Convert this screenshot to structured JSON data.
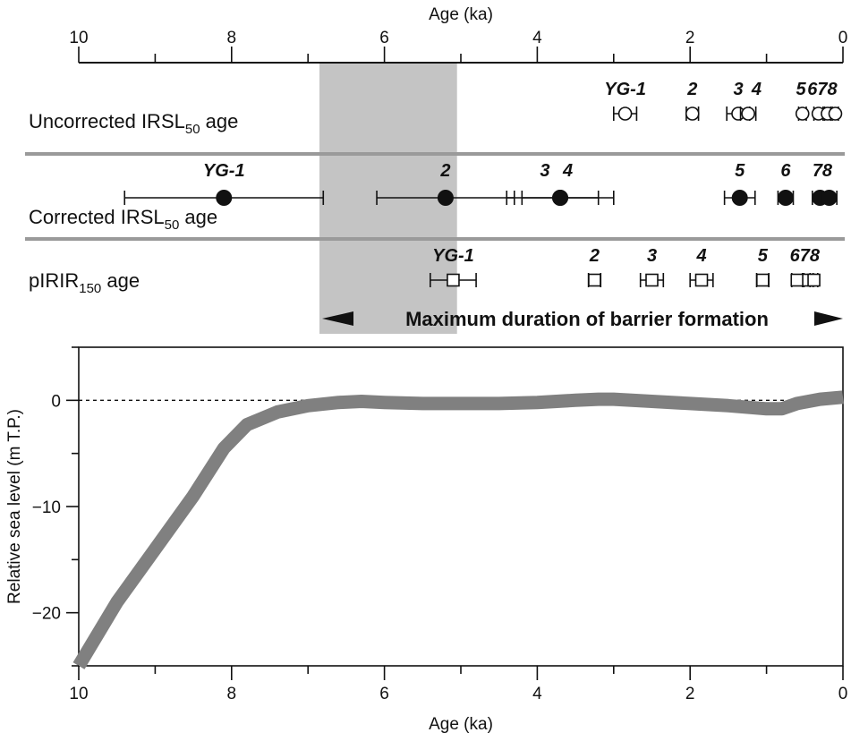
{
  "chart_data": [
    {
      "type": "scatter",
      "x_axis": {
        "label": "Age (ka)",
        "range": [
          10,
          0
        ],
        "ticks": [
          "10",
          "8",
          "6",
          "4",
          "2",
          "0"
        ],
        "position": "top"
      },
      "shaded_interval": {
        "from": 6.85,
        "to": 5.05
      },
      "banner": "Maximum duration of barrier formation",
      "rows": [
        {
          "label_main": "Uncorrected IRSL",
          "label_sub": "50",
          "label_tail": " age",
          "marker": "open-circle",
          "points": [
            {
              "sample": "YG-1",
              "age": 2.85,
              "err_minus": 0.15,
              "err_plus": 0.15
            },
            {
              "sample": "2",
              "age": 1.97,
              "err_minus": 0.08,
              "err_plus": 0.08
            },
            {
              "sample": "3",
              "age": 1.37,
              "err_minus": 0.15,
              "err_plus": 0.15
            },
            {
              "sample": "4",
              "age": 1.24,
              "err_minus": 0.1,
              "err_plus": 0.1
            },
            {
              "sample": "5",
              "age": 0.53,
              "err_minus": 0.05,
              "err_plus": 0.05
            },
            {
              "sample": "6",
              "age": 0.32,
              "err_minus": 0.06,
              "err_plus": 0.06
            },
            {
              "sample": "7",
              "age": 0.2,
              "err_minus": 0.04,
              "err_plus": 0.04
            },
            {
              "sample": "8",
              "age": 0.1,
              "err_minus": 0.04,
              "err_plus": 0.04
            }
          ]
        },
        {
          "label_main": "Corrected IRSL",
          "label_sub": "50",
          "label_tail": " age",
          "marker": "filled-circle",
          "points": [
            {
              "sample": "YG-1",
              "age": 8.1,
              "err_minus": 1.3,
              "err_plus": 1.3
            },
            {
              "sample": "2",
              "age": 5.2,
              "err_minus": 0.9,
              "err_plus": 0.9
            },
            {
              "sample": "3",
              "age": 3.7,
              "err_minus": 0.5,
              "err_plus": 0.5
            },
            {
              "sample": "4",
              "age": 3.7,
              "err_minus": 0.7,
              "err_plus": 0.7
            },
            {
              "sample": "5",
              "age": 1.35,
              "err_minus": 0.2,
              "err_plus": 0.2
            },
            {
              "sample": "6",
              "age": 0.75,
              "err_minus": 0.1,
              "err_plus": 0.1
            },
            {
              "sample": "7",
              "age": 0.3,
              "err_minus": 0.1,
              "err_plus": 0.1
            },
            {
              "sample": "8",
              "age": 0.18,
              "err_minus": 0.1,
              "err_plus": 0.1
            }
          ]
        },
        {
          "label_main": "pIRIR",
          "label_sub": "150",
          "label_tail": " age",
          "marker": "open-square",
          "points": [
            {
              "sample": "YG-1",
              "age": 5.1,
              "err_minus": 0.3,
              "err_plus": 0.3
            },
            {
              "sample": "2",
              "age": 3.25,
              "err_minus": 0.08,
              "err_plus": 0.08
            },
            {
              "sample": "3",
              "age": 2.5,
              "err_minus": 0.15,
              "err_plus": 0.15
            },
            {
              "sample": "4",
              "age": 1.85,
              "err_minus": 0.15,
              "err_plus": 0.15
            },
            {
              "sample": "5",
              "age": 1.05,
              "err_minus": 0.08,
              "err_plus": 0.08
            },
            {
              "sample": "6",
              "age": 0.6,
              "err_minus": 0.07,
              "err_plus": 0.07
            },
            {
              "sample": "7",
              "age": 0.45,
              "err_minus": 0.06,
              "err_plus": 0.06
            },
            {
              "sample": "8",
              "age": 0.38,
              "err_minus": 0.05,
              "err_plus": 0.05
            }
          ]
        }
      ],
      "label_groups": [
        [
          {
            "text": "YG-1",
            "age": 2.85
          },
          {
            "text": "2",
            "age": 1.97
          },
          {
            "text": "3",
            "age": 1.37
          },
          {
            "text": "4",
            "age": 1.13
          },
          {
            "text": "5",
            "age": 0.55
          },
          {
            "text": "678",
            "age": 0.27
          }
        ],
        [
          {
            "text": "YG-1",
            "age": 8.1
          },
          {
            "text": "2",
            "age": 5.2
          },
          {
            "text": "3",
            "age": 3.9
          },
          {
            "text": "4",
            "age": 3.6
          },
          {
            "text": "5",
            "age": 1.35
          },
          {
            "text": "6",
            "age": 0.75
          },
          {
            "text": "78",
            "age": 0.27
          }
        ],
        [
          {
            "text": "YG-1",
            "age": 5.1
          },
          {
            "text": "2",
            "age": 3.25
          },
          {
            "text": "3",
            "age": 2.5
          },
          {
            "text": "4",
            "age": 1.85
          },
          {
            "text": "5",
            "age": 1.05
          },
          {
            "text": "678",
            "age": 0.5
          }
        ]
      ]
    },
    {
      "type": "line",
      "xlabel": "Age (ka)",
      "ylabel": "Relative sea level (m T.P.)",
      "xlim": [
        10,
        0
      ],
      "ylim": [
        -25,
        5
      ],
      "x_ticks": [
        "10",
        "8",
        "6",
        "4",
        "2",
        "0"
      ],
      "y_ticks": [
        {
          "value": 0,
          "label": "0"
        },
        {
          "value": -10,
          "label": "−10"
        },
        {
          "value": -20,
          "label": "−20"
        }
      ],
      "reference_line": {
        "y": 0,
        "style": "dashed"
      },
      "series": [
        {
          "x": [
            10.2,
            9.5,
            9.0,
            8.5,
            8.1,
            7.8,
            7.4,
            7.0,
            6.6,
            6.3,
            6.0,
            5.5,
            5.0,
            4.5,
            4.0,
            3.5,
            3.2,
            3.0,
            2.5,
            2.0,
            1.5,
            1.0,
            0.8,
            0.6,
            0.3,
            0.0
          ],
          "y": [
            -26.5,
            -19.0,
            -14.0,
            -9.0,
            -4.5,
            -2.3,
            -1.1,
            -0.5,
            -0.2,
            -0.1,
            -0.2,
            -0.3,
            -0.3,
            -0.3,
            -0.2,
            0.0,
            0.1,
            0.1,
            -0.1,
            -0.3,
            -0.5,
            -0.8,
            -0.8,
            -0.3,
            0.1,
            0.3
          ]
        }
      ]
    }
  ]
}
